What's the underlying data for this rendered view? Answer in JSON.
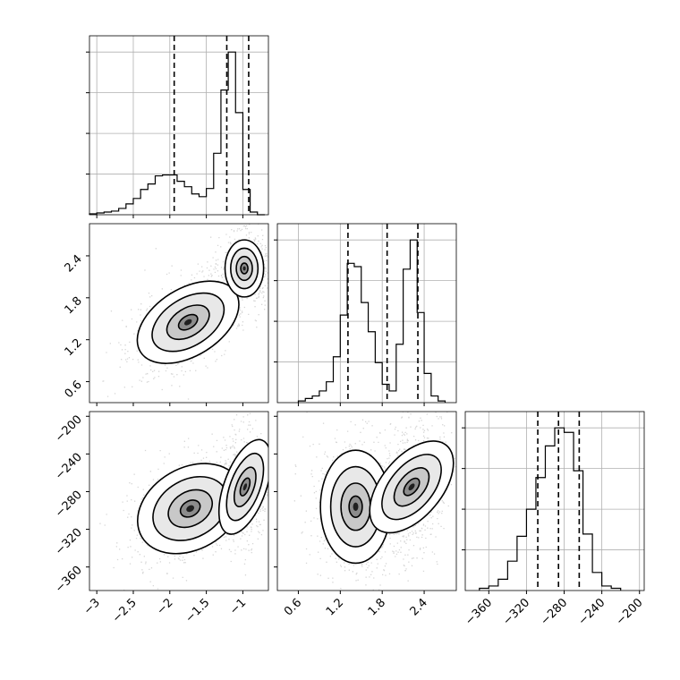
{
  "chart_data": {
    "type": "corner",
    "panels": {
      "hist_x": {
        "type": "step-histogram",
        "xlim": [
          -3.1,
          -0.65
        ],
        "bins": [
          -3.1,
          -3.0,
          -2.9,
          -2.8,
          -2.7,
          -2.6,
          -2.5,
          -2.4,
          -2.3,
          -2.2,
          -2.1,
          -2.0,
          -1.9,
          -1.8,
          -1.7,
          -1.6,
          -1.5,
          -1.4,
          -1.3,
          -1.2,
          -1.1,
          -1.0,
          -0.9,
          -0.8,
          -0.7
        ],
        "counts": [
          0.01,
          0.02,
          0.03,
          0.04,
          0.07,
          0.12,
          0.18,
          0.28,
          0.34,
          0.43,
          0.44,
          0.44,
          0.37,
          0.31,
          0.23,
          0.2,
          0.29,
          0.68,
          1.38,
          1.8,
          1.13,
          0.28,
          0.03,
          0.0
        ],
        "quantile_lines": [
          -1.94,
          -1.22,
          -0.92
        ],
        "grid": true
      },
      "hist_y": {
        "type": "step-histogram",
        "xlim": [
          0.3,
          2.86
        ],
        "bins": [
          0.6,
          0.7,
          0.8,
          0.9,
          1.0,
          1.1,
          1.2,
          1.3,
          1.4,
          1.5,
          1.6,
          1.7,
          1.8,
          1.9,
          2.0,
          2.1,
          2.2,
          2.3,
          2.4,
          2.5,
          2.6,
          2.7
        ],
        "counts": [
          0.02,
          0.05,
          0.08,
          0.14,
          0.25,
          0.55,
          1.05,
          1.67,
          1.63,
          1.2,
          0.85,
          0.48,
          0.22,
          0.14,
          0.7,
          1.6,
          1.95,
          1.08,
          0.35,
          0.08,
          0.02
        ],
        "quantile_lines": [
          1.31,
          1.87,
          2.31
        ],
        "grid": true
      },
      "hist_z": {
        "type": "step-histogram",
        "xlim": [
          -385,
          -195
        ],
        "xticks": [
          -360,
          -320,
          -280,
          -240,
          -200
        ],
        "bins": [
          -370,
          -360,
          -350,
          -340,
          -330,
          -320,
          -310,
          -300,
          -290,
          -280,
          -270,
          -260,
          -250,
          -240,
          -230,
          -220
        ],
        "counts": [
          0.01,
          0.02,
          0.05,
          0.13,
          0.24,
          0.36,
          0.5,
          0.64,
          0.72,
          0.7,
          0.53,
          0.25,
          0.08,
          0.02,
          0.01
        ],
        "quantile_lines": [
          -308,
          -286,
          -264
        ],
        "grid": true
      },
      "y_vs_x": {
        "type": "2d-density",
        "xlim": [
          -3.1,
          -0.65
        ],
        "ylim": [
          0.3,
          2.86
        ],
        "yticks": [
          0.6,
          1.2,
          1.8,
          2.4
        ],
        "modes": [
          {
            "center": [
              -1.75,
              1.45
            ],
            "spread": [
              0.32,
              0.2
            ],
            "angle_deg": 32,
            "weight": 0.55
          },
          {
            "center": [
              -0.98,
              2.22
            ],
            "spread": [
              0.11,
              0.17
            ],
            "angle_deg": 0,
            "weight": 0.45
          }
        ]
      },
      "z_vs_x": {
        "type": "2d-density",
        "xlim": [
          -3.1,
          -0.65
        ],
        "ylim": [
          -385,
          -195
        ],
        "xticks": [
          -3.0,
          -2.5,
          -2.0,
          -1.5,
          -1.0
        ],
        "yticks": [
          -360,
          -320,
          -280,
          -240,
          -200
        ],
        "modes": [
          {
            "center": [
              -1.72,
              -298
            ],
            "spread": [
              0.32,
              18
            ],
            "angle_deg": 30,
            "weight": 0.55
          },
          {
            "center": [
              -0.97,
              -275
            ],
            "spread": [
              0.12,
              22
            ],
            "angle_deg": -20,
            "weight": 0.45
          }
        ]
      },
      "z_vs_y": {
        "type": "2d-density",
        "xlim": [
          0.3,
          2.86
        ],
        "ylim": [
          -385,
          -195
        ],
        "xticks": [
          0.6,
          1.2,
          1.8,
          2.4
        ],
        "modes": [
          {
            "center": [
              1.42,
              -296
            ],
            "spread": [
              0.21,
              25
            ],
            "angle_deg": 0,
            "weight": 0.55
          },
          {
            "center": [
              2.22,
              -275
            ],
            "spread": [
              0.18,
              24
            ],
            "angle_deg": -40,
            "weight": 0.45
          }
        ]
      }
    }
  }
}
